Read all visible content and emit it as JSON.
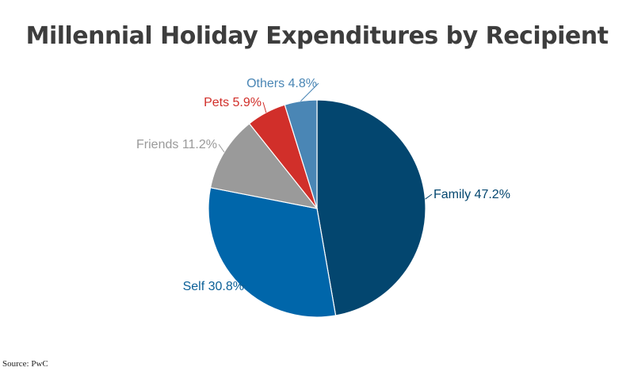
{
  "chart_data": {
    "type": "pie",
    "title": "Millennial Holiday Expenditures by Recipient",
    "slices": [
      {
        "label": "Family",
        "value": 47.2,
        "display": "Family 47.2%",
        "color": "#03466f",
        "label_color": "#03466f"
      },
      {
        "label": "Self",
        "value": 30.8,
        "display": "Self 30.8%",
        "color": "#0066aa",
        "label_color": "#0a5f97"
      },
      {
        "label": "Friends",
        "value": 11.2,
        "display": "Friends 11.2%",
        "color": "#9a9a9a",
        "label_color": "#9a9a9a"
      },
      {
        "label": "Pets",
        "value": 5.9,
        "display": "Pets 5.9%",
        "color": "#d12f2a",
        "label_color": "#d12f2a"
      },
      {
        "label": "Others",
        "value": 4.8,
        "display": "Others 4.8%",
        "color": "#4a86b5",
        "label_color": "#4a86b5"
      }
    ],
    "start": "12 o'clock",
    "direction": "clockwise",
    "legend": "none"
  },
  "source": "Source: PwC"
}
